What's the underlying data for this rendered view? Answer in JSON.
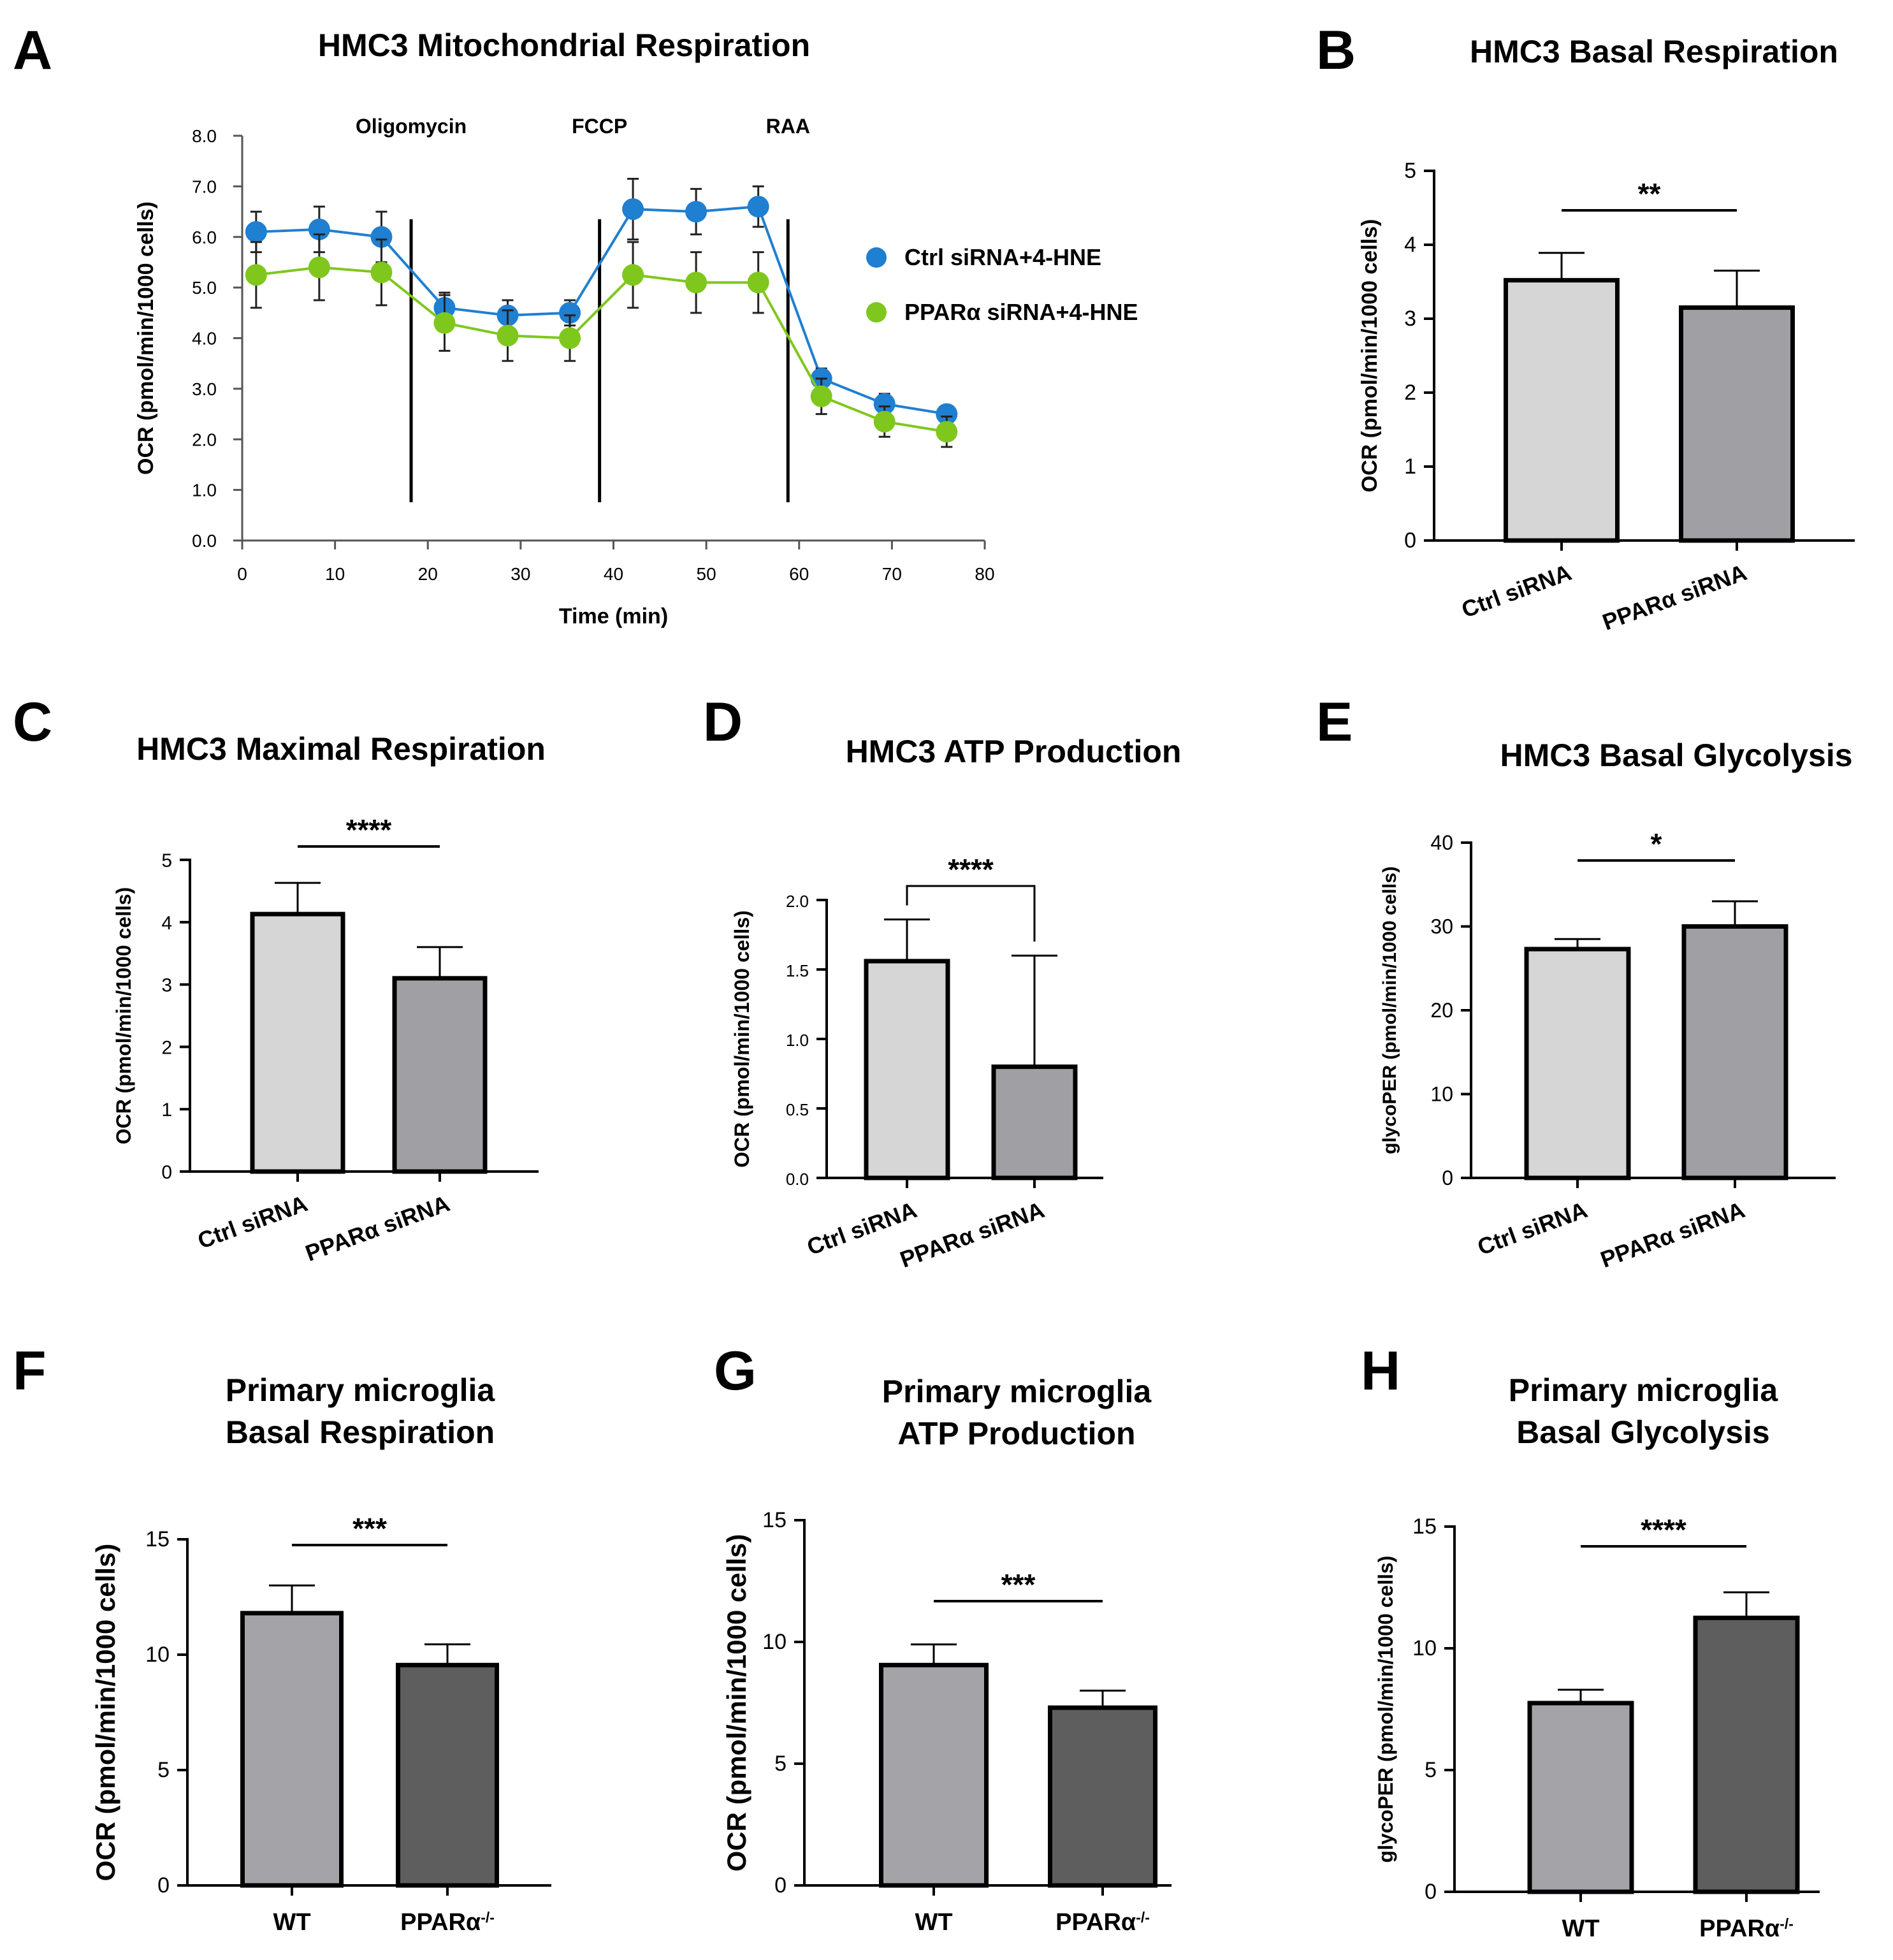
{
  "panel_letters": [
    "A",
    "B",
    "C",
    "D",
    "E",
    "F",
    "G",
    "H"
  ],
  "colors": {
    "ctrl_blue": "#1f7fd1",
    "pparA_green": "#7fc71d",
    "ctrl_bar": "#d6d6d6",
    "ppar_bar_light": "#a0a0a4",
    "wt_bar": "#a4a4a8",
    "ko_bar": "#5e5e5e",
    "axis": "#000000"
  },
  "chart_data": [
    {
      "id": "A",
      "type": "line",
      "title": "HMC3 Mitochondrial Respiration",
      "xlabel": "Time (min)",
      "ylabel": "OCR (pmol/min/1000 cells)",
      "xlim": [
        0,
        80
      ],
      "ylim": [
        0,
        8
      ],
      "xticks": [
        0,
        10,
        20,
        30,
        40,
        50,
        60,
        70,
        80
      ],
      "yticks": [
        "0.0",
        "1.0",
        "2.0",
        "3.0",
        "4.0",
        "5.0",
        "6.0",
        "7.0",
        "8.0"
      ],
      "x": [
        1.5,
        8.3,
        15,
        21.8,
        28.6,
        35.3,
        42.1,
        48.9,
        55.6,
        62.4,
        69.2,
        75.9
      ],
      "injections": [
        {
          "label": "Oligomycin",
          "x": 18.2
        },
        {
          "label": "FCCP",
          "x": 38.5
        },
        {
          "label": "RAA",
          "x": 58.8
        }
      ],
      "series": [
        {
          "name": "Ctrl siRNA+4-HNE",
          "color": "#1f7fd1",
          "values": [
            6.1,
            6.15,
            6.0,
            4.6,
            4.45,
            4.5,
            6.55,
            6.5,
            6.6,
            3.2,
            2.7,
            2.5
          ],
          "errors": [
            0.4,
            0.45,
            0.5,
            0.3,
            0.3,
            0.25,
            0.6,
            0.45,
            0.4,
            0.2,
            0.2,
            0.15
          ]
        },
        {
          "name": "PPARα siRNA+4-HNE",
          "color": "#7fc71d",
          "values": [
            5.25,
            5.4,
            5.3,
            4.3,
            4.05,
            4.0,
            5.25,
            5.1,
            5.1,
            2.85,
            2.35,
            2.15
          ],
          "errors": [
            0.65,
            0.65,
            0.65,
            0.55,
            0.5,
            0.45,
            0.65,
            0.6,
            0.6,
            0.35,
            0.3,
            0.3
          ]
        }
      ]
    },
    {
      "id": "B",
      "type": "bar",
      "title": "HMC3 Basal Respiration",
      "ylabel": "OCR (pmol/min/1000 cells)",
      "ylim": [
        0,
        5
      ],
      "yticks": [
        "0",
        "1",
        "2",
        "3",
        "4",
        "5"
      ],
      "categories": [
        "Ctrl siRNA",
        "PPARα siRNA"
      ],
      "values": [
        3.52,
        3.15
      ],
      "errors": [
        0.37,
        0.5
      ],
      "bar_colors": [
        "#d6d6d6",
        "#a0a0a4"
      ],
      "significance": "**",
      "bracket": "flat"
    },
    {
      "id": "C",
      "type": "bar",
      "title": "HMC3 Maximal Respiration",
      "ylabel": "OCR (pmol/min/1000 cells)",
      "ylim": [
        0,
        5
      ],
      "yticks": [
        "0",
        "1",
        "2",
        "3",
        "4",
        "5"
      ],
      "categories": [
        "Ctrl siRNA",
        "PPARα siRNA"
      ],
      "values": [
        4.13,
        3.1
      ],
      "errors": [
        0.5,
        0.5
      ],
      "bar_colors": [
        "#d6d6d6",
        "#a0a0a4"
      ],
      "significance": "****",
      "bracket": "flat"
    },
    {
      "id": "D",
      "type": "bar",
      "title": "HMC3 ATP Production",
      "ylabel": "OCR (pmol/min/1000 cells)",
      "ylim": [
        0,
        2.0
      ],
      "yticks": [
        "0.0",
        "0.5",
        "1.0",
        "1.5",
        "2.0"
      ],
      "categories": [
        "Ctrl siRNA",
        "PPARα siRNA"
      ],
      "values": [
        1.56,
        0.8
      ],
      "errors": [
        0.3,
        0.8
      ],
      "bar_colors": [
        "#d6d6d6",
        "#a0a0a4"
      ],
      "significance": "****",
      "bracket": "legs"
    },
    {
      "id": "E",
      "type": "bar",
      "title": "HMC3 Basal Glycolysis",
      "ylabel": "glycoPER (pmol/min/1000 cells)",
      "ylim": [
        0,
        40
      ],
      "yticks": [
        "0",
        "10",
        "20",
        "30",
        "40"
      ],
      "categories": [
        "Ctrl siRNA",
        "PPARα siRNA"
      ],
      "values": [
        27.3,
        30.0
      ],
      "errors": [
        1.2,
        3.0
      ],
      "bar_colors": [
        "#d6d6d6",
        "#a0a0a4"
      ],
      "significance": "*",
      "bracket": "flat"
    },
    {
      "id": "F",
      "type": "bar",
      "title": [
        "Primary microglia",
        "Basal Respiration"
      ],
      "ylabel": "OCR (pmol/min/1000 cells)",
      "ylim": [
        0,
        15
      ],
      "yticks": [
        "0",
        "5",
        "10",
        "15"
      ],
      "categories": [
        "WT",
        "PPARα-/-"
      ],
      "values": [
        11.8,
        9.55
      ],
      "errors": [
        1.2,
        0.9
      ],
      "bar_colors": [
        "#a4a4a8",
        "#5e5e5e"
      ],
      "significance": "***",
      "bracket": "flat"
    },
    {
      "id": "G",
      "type": "bar",
      "title": [
        "Primary microglia",
        "ATP Production"
      ],
      "ylabel": "OCR (pmol/min/1000 cells)",
      "ylim": [
        0,
        15
      ],
      "yticks": [
        "0",
        "5",
        "10",
        "15"
      ],
      "categories": [
        "WT",
        "PPARα-/-"
      ],
      "values": [
        9.05,
        7.3
      ],
      "errors": [
        0.85,
        0.7
      ],
      "bar_colors": [
        "#a4a4a8",
        "#5e5e5e"
      ],
      "significance": "***",
      "bracket": "flat"
    },
    {
      "id": "H",
      "type": "bar",
      "title": [
        "Primary microglia",
        "Basal Glycolysis"
      ],
      "ylabel": "glycoPER (pmol/min/1000 cells)",
      "ylim": [
        0,
        15
      ],
      "yticks": [
        "0",
        "5",
        "10",
        "15"
      ],
      "categories": [
        "WT",
        "PPARα-/-"
      ],
      "values": [
        7.75,
        11.25
      ],
      "errors": [
        0.55,
        1.05
      ],
      "bar_colors": [
        "#a4a4a8",
        "#5e5e5e"
      ],
      "significance": "****",
      "bracket": "flat"
    }
  ]
}
